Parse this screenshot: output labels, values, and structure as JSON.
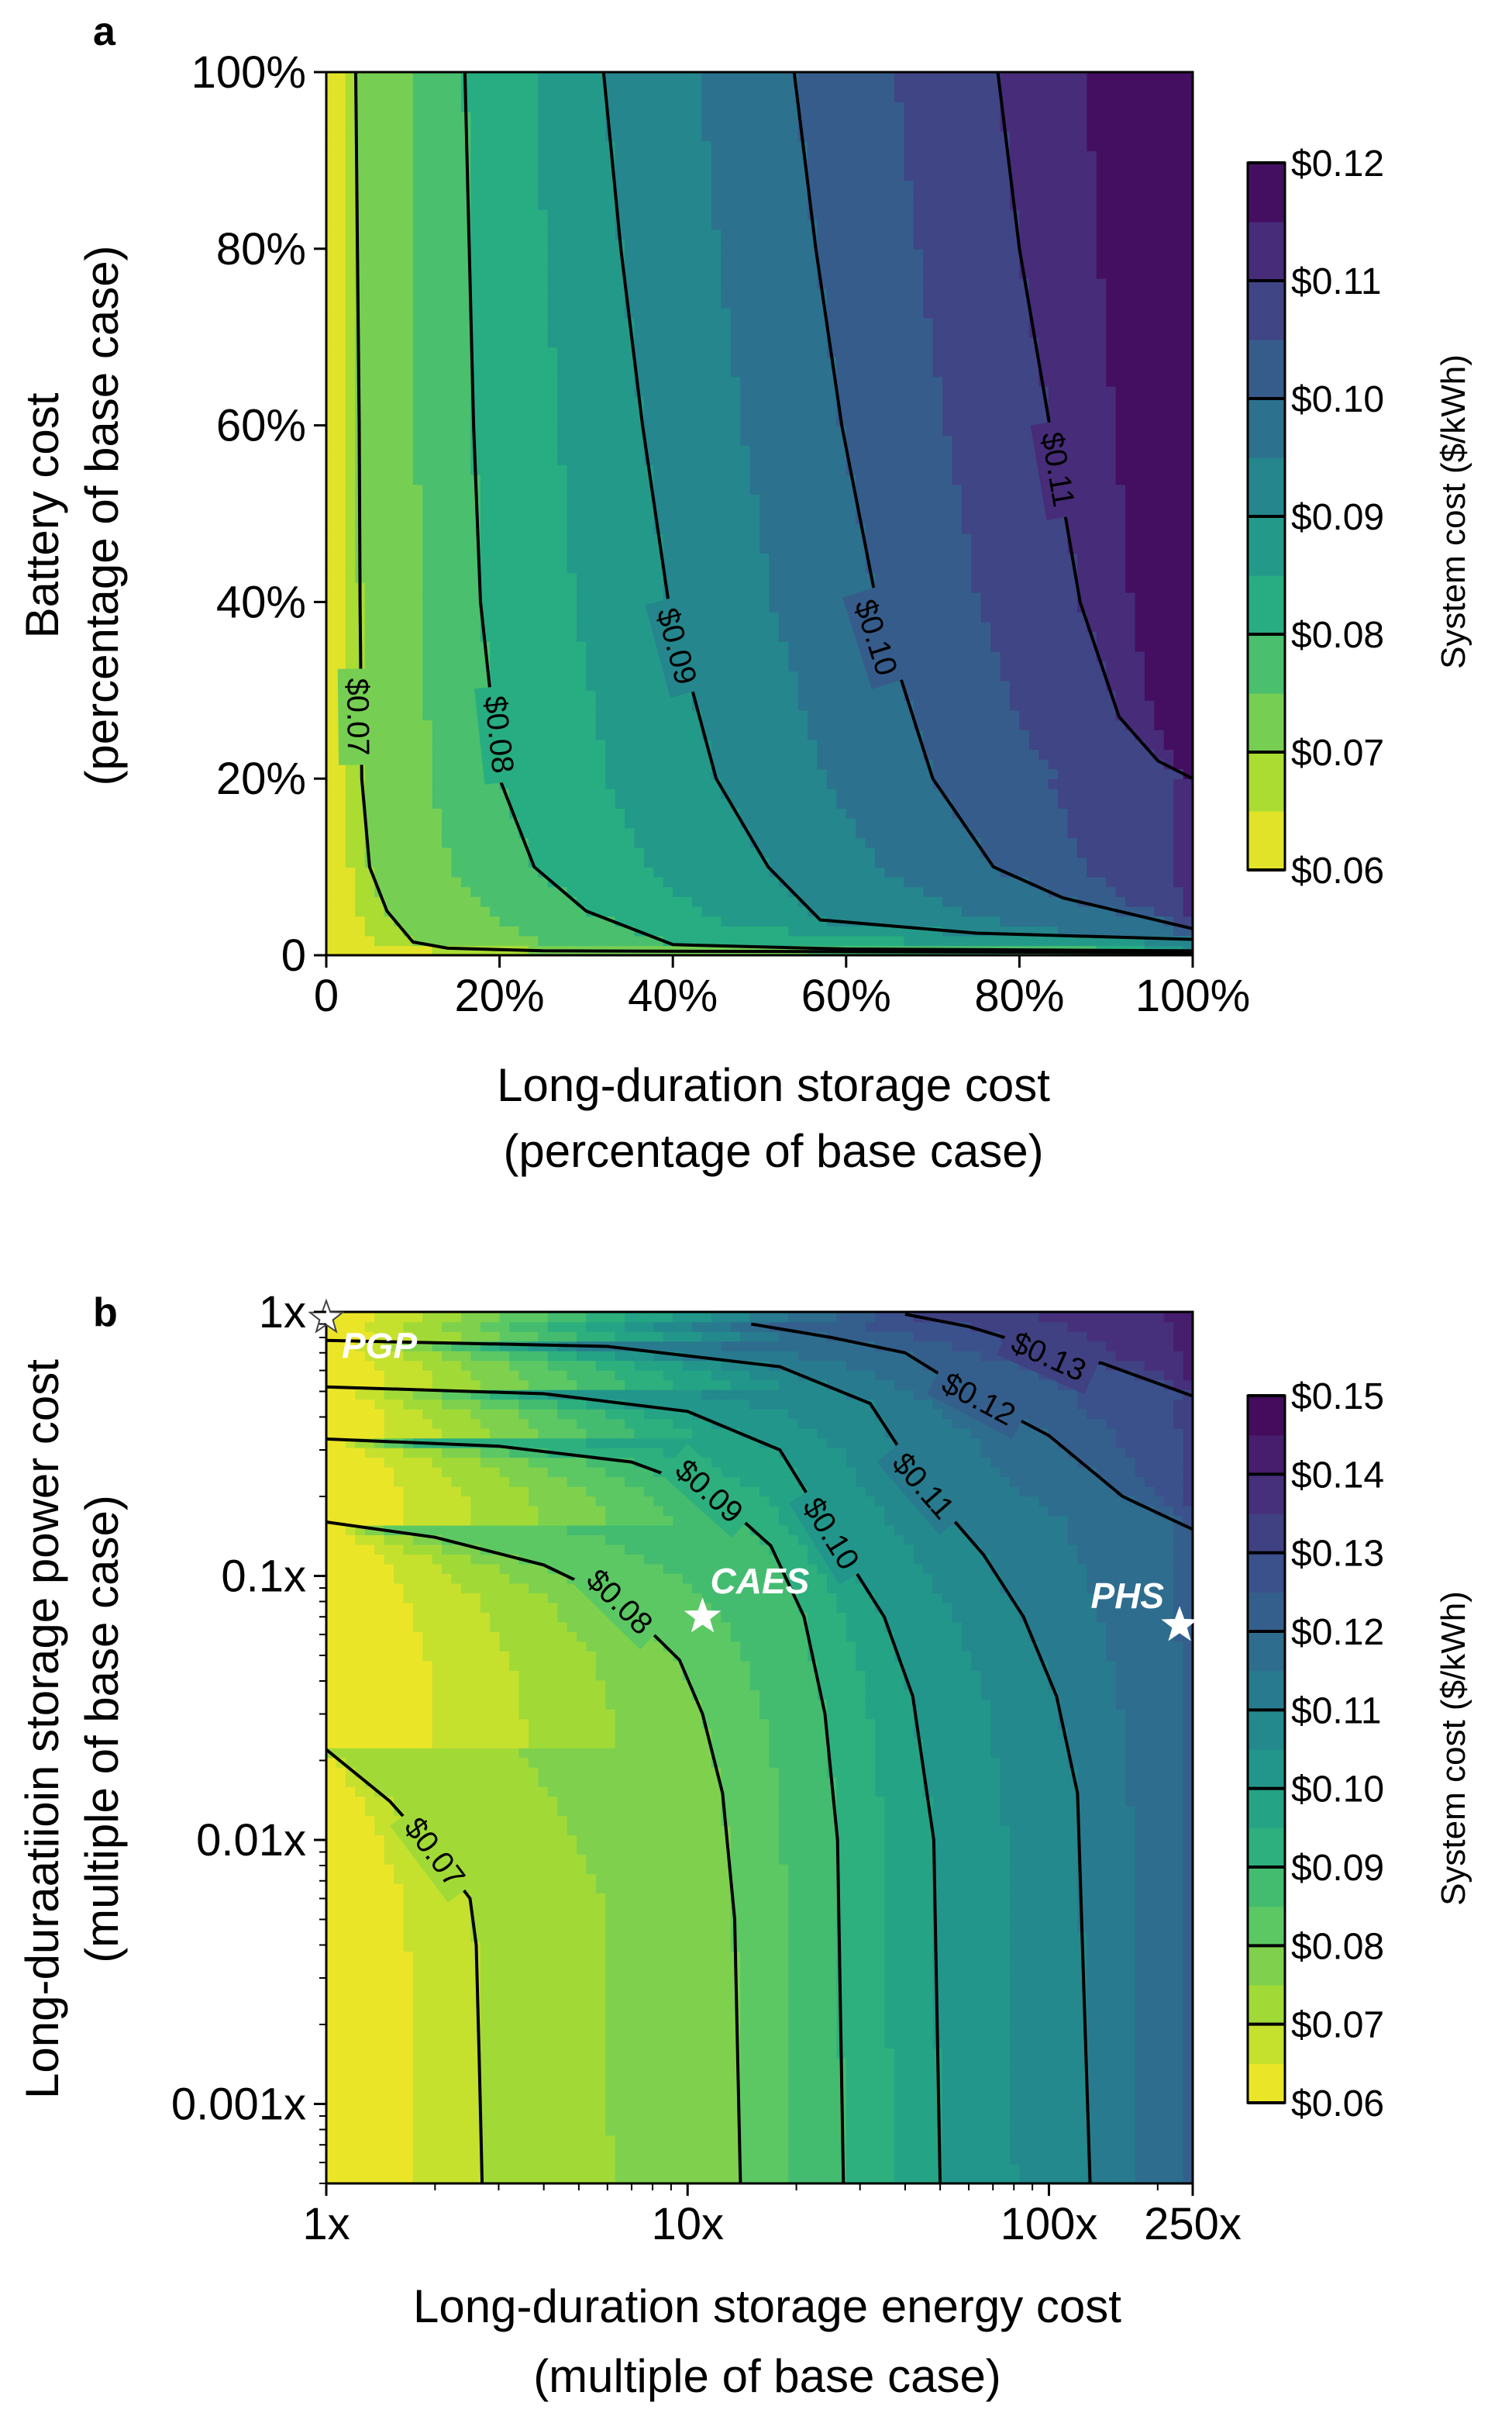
{
  "chart_data": [
    {
      "panel": "a",
      "type": "heatmap",
      "xlabel_line1": "Long-duration storage cost",
      "xlabel_line2": "(percentage of base case)",
      "ylabel_line1": "Battery cost",
      "ylabel_line2": "(percentage of base case)",
      "xlim": [
        0,
        100
      ],
      "ylim": [
        0,
        100
      ],
      "x_ticks": [
        0,
        20,
        40,
        60,
        80,
        100
      ],
      "x_tick_labels": [
        "0",
        "20%",
        "40%",
        "60%",
        "80%",
        "100%"
      ],
      "y_ticks": [
        0,
        20,
        40,
        60,
        80,
        100
      ],
      "y_tick_labels": [
        "0",
        "20%",
        "40%",
        "60%",
        "80%",
        "100%"
      ],
      "colorbar": {
        "title": "System cost ($/kWh)",
        "min": 0.06,
        "max": 0.12,
        "step": 0.005,
        "tick_values": [
          0.06,
          0.07,
          0.08,
          0.09,
          0.1,
          0.11,
          0.12
        ],
        "tick_labels": [
          "$0.06",
          "$0.07",
          "$0.08",
          "$0.09",
          "$0.10",
          "$0.11",
          "$0.12"
        ]
      },
      "contours": [
        {
          "level": 0.07,
          "label": "$0.07",
          "label_at": [
            3.7,
            27
          ],
          "points": [
            [
              3.4,
              100
            ],
            [
              3.6,
              80
            ],
            [
              3.8,
              60
            ],
            [
              3.9,
              40
            ],
            [
              4.1,
              20
            ],
            [
              5,
              10
            ],
            [
              7,
              5
            ],
            [
              10,
              1.5
            ],
            [
              14,
              0.8
            ],
            [
              25,
              0.5
            ],
            [
              100,
              0.3
            ]
          ]
        },
        {
          "level": 0.08,
          "label": "$0.08",
          "label_at": [
            20,
            25
          ],
          "points": [
            [
              16,
              100
            ],
            [
              16.5,
              80
            ],
            [
              17,
              60
            ],
            [
              17.8,
              40
            ],
            [
              20,
              20
            ],
            [
              24,
              10
            ],
            [
              30,
              5
            ],
            [
              40,
              1.2
            ],
            [
              60,
              0.7
            ],
            [
              100,
              0.5
            ]
          ]
        },
        {
          "level": 0.09,
          "label": "$0.09",
          "label_at": [
            40.5,
            35
          ],
          "points": [
            [
              32,
              100
            ],
            [
              34,
              80
            ],
            [
              36.5,
              60
            ],
            [
              39.5,
              40
            ],
            [
              45,
              20
            ],
            [
              51,
              10
            ],
            [
              57,
              4
            ],
            [
              75,
              2.5
            ],
            [
              100,
              1.8
            ]
          ]
        },
        {
          "level": 0.1,
          "label": "$0.10",
          "label_at": [
            63.5,
            36
          ],
          "points": [
            [
              54,
              100
            ],
            [
              56.5,
              80
            ],
            [
              59.5,
              60
            ],
            [
              63.5,
              40
            ],
            [
              70,
              20
            ],
            [
              77,
              10
            ],
            [
              85,
              6.5
            ],
            [
              100,
              3
            ]
          ]
        },
        {
          "level": 0.11,
          "label": "$0.11",
          "label_at": [
            84.5,
            55
          ],
          "points": [
            [
              77.5,
              100
            ],
            [
              80,
              80
            ],
            [
              83.5,
              60
            ],
            [
              87,
              40
            ],
            [
              91.5,
              27
            ],
            [
              96,
              22
            ],
            [
              100,
              20
            ]
          ]
        }
      ]
    },
    {
      "panel": "b",
      "type": "heatmap",
      "xlabel_line1": "Long-duration storage energy cost",
      "xlabel_line2": "(multiple of base case)",
      "ylabel_line1": "Long-duraatiioin storage power cost",
      "ylabel_line2": "(multiple of base case)",
      "x_scale": "log",
      "y_scale": "log",
      "xlim": [
        1,
        250
      ],
      "ylim": [
        0.0005,
        1
      ],
      "x_ticks": [
        1,
        10,
        100,
        250
      ],
      "x_tick_labels": [
        "1x",
        "10x",
        "100x",
        "250x"
      ],
      "y_ticks": [
        0.001,
        0.01,
        0.1,
        1
      ],
      "y_tick_labels": [
        "0.001x",
        "0.01x",
        "0.1x",
        "1x"
      ],
      "colorbar": {
        "title": "System cost ($/kWh)",
        "min": 0.06,
        "max": 0.15,
        "step": 0.005,
        "tick_values": [
          0.06,
          0.07,
          0.08,
          0.09,
          0.1,
          0.11,
          0.12,
          0.13,
          0.14,
          0.15
        ],
        "tick_labels": [
          "$0.06",
          "$0.07",
          "$0.08",
          "$0.09",
          "$0.10",
          "$0.11",
          "$0.12",
          "$0.13",
          "$0.14",
          "$0.15"
        ]
      },
      "contours": [
        {
          "level": 0.07,
          "label": "$0.07",
          "label_at": [
            2.0,
            0.009
          ],
          "points": [
            [
              1,
              0.022
            ],
            [
              1.5,
              0.014
            ],
            [
              2.0,
              0.009
            ],
            [
              2.5,
              0.006
            ],
            [
              2.6,
              0.004
            ],
            [
              2.65,
              0.0015
            ],
            [
              2.7,
              0.0005
            ]
          ]
        },
        {
          "level": 0.08,
          "label": "$0.08",
          "label_at": [
            6.5,
            0.08
          ],
          "points": [
            [
              1,
              0.16
            ],
            [
              2,
              0.14
            ],
            [
              4,
              0.11
            ],
            [
              6.5,
              0.08
            ],
            [
              9.5,
              0.048
            ],
            [
              11,
              0.03
            ],
            [
              12.5,
              0.015
            ],
            [
              13.5,
              0.005
            ],
            [
              14,
              0.0005
            ]
          ]
        },
        {
          "level": 0.09,
          "label": "$0.09",
          "label_at": [
            11.5,
            0.21
          ],
          "points": [
            [
              1,
              0.33
            ],
            [
              3,
              0.31
            ],
            [
              7,
              0.27
            ],
            [
              11.5,
              0.21
            ],
            [
              17,
              0.13
            ],
            [
              21,
              0.07
            ],
            [
              24,
              0.03
            ],
            [
              26,
              0.01
            ],
            [
              27,
              0.0005
            ]
          ]
        },
        {
          "level": 0.1,
          "label": "$0.10",
          "label_at": [
            25,
            0.145
          ],
          "points": [
            [
              1,
              0.52
            ],
            [
              4,
              0.49
            ],
            [
              10,
              0.42
            ],
            [
              18,
              0.3
            ],
            [
              25,
              0.145
            ],
            [
              35,
              0.07
            ],
            [
              42,
              0.035
            ],
            [
              48,
              0.01
            ],
            [
              50,
              0.0005
            ]
          ]
        },
        {
          "level": 0.11,
          "label": "$0.11",
          "label_at": [
            45,
            0.22
          ],
          "points": [
            [
              1,
              0.78
            ],
            [
              6,
              0.74
            ],
            [
              18,
              0.62
            ],
            [
              32,
              0.45
            ],
            [
              45,
              0.22
            ],
            [
              66,
              0.12
            ],
            [
              85,
              0.07
            ],
            [
              105,
              0.035
            ],
            [
              120,
              0.015
            ],
            [
              130,
              0.0005
            ]
          ]
        },
        {
          "level": 0.12,
          "label": "$0.12",
          "label_at": [
            64,
            0.47
          ],
          "points": [
            [
              15,
              0.9
            ],
            [
              25,
              0.8
            ],
            [
              40,
              0.7
            ],
            [
              64,
              0.47
            ],
            [
              100,
              0.34
            ],
            [
              160,
              0.2
            ],
            [
              250,
              0.15
            ]
          ]
        },
        {
          "level": 0.13,
          "label": "$0.13",
          "label_at": [
            100,
            0.68
          ],
          "points": [
            [
              40,
              0.98
            ],
            [
              60,
              0.88
            ],
            [
              80,
              0.78
            ],
            [
              100,
              0.68
            ],
            [
              140,
              0.64
            ],
            [
              190,
              0.55
            ],
            [
              250,
              0.48
            ]
          ]
        }
      ],
      "markers": [
        {
          "label": "PGP",
          "x": 1,
          "y": 0.95,
          "style": "white-outline"
        },
        {
          "label": "CAES",
          "x": 11,
          "y": 0.07,
          "style": "white"
        },
        {
          "label": "PHS",
          "x": 230,
          "y": 0.065,
          "style": "white"
        }
      ]
    }
  ]
}
